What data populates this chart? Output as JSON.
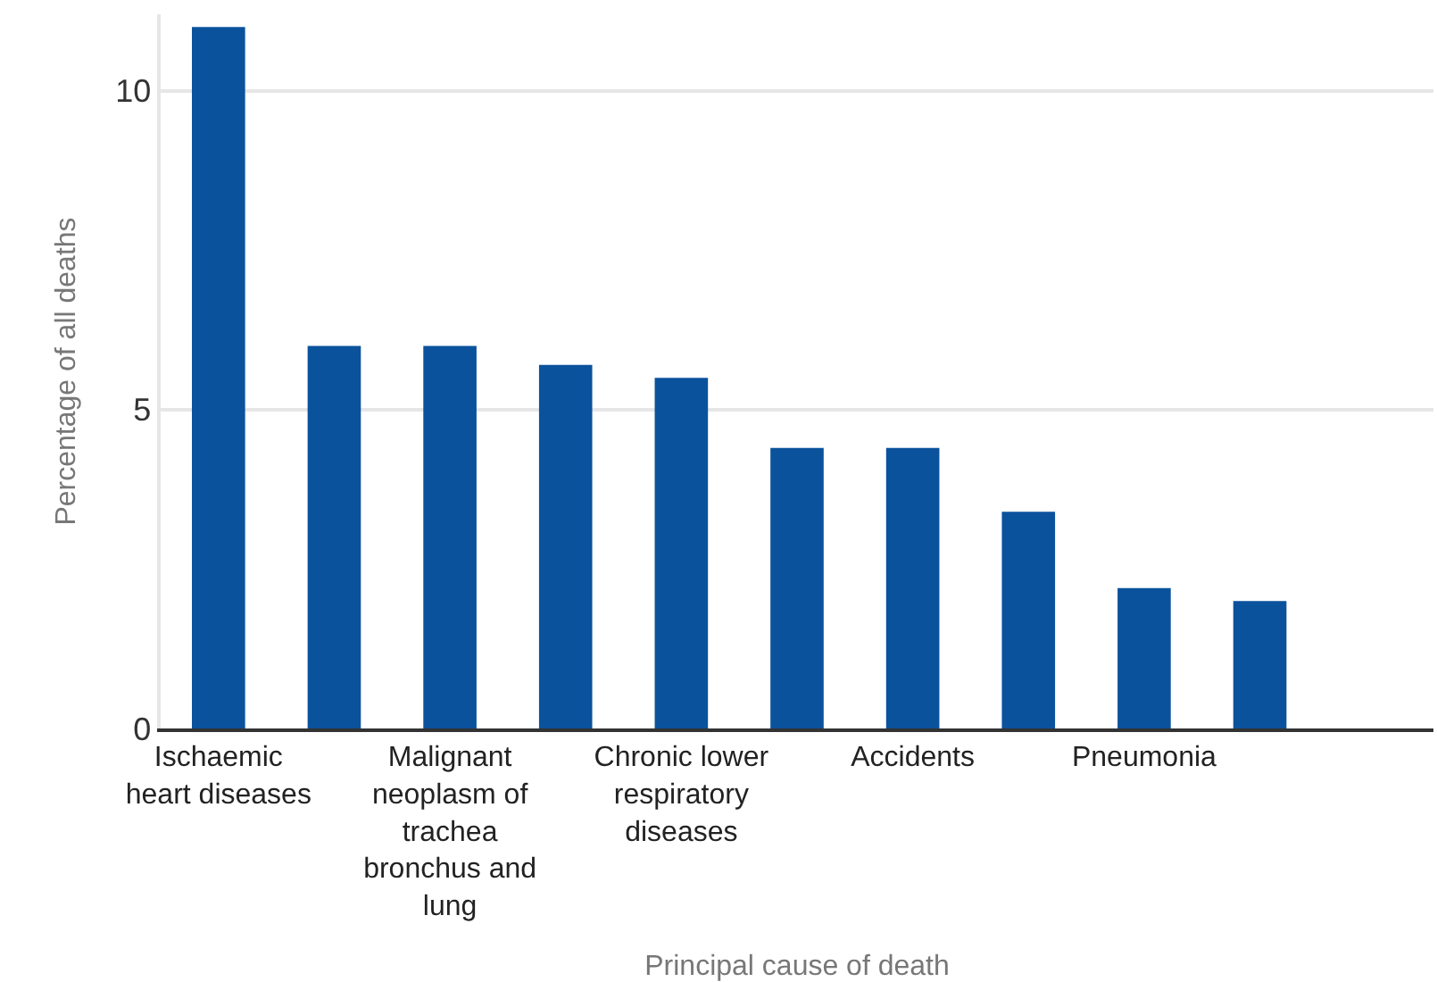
{
  "chart_data": {
    "type": "bar",
    "xlabel": "Principal cause of death",
    "ylabel": "Percentage of all deaths",
    "categories": [
      "Ischaemic heart diseases",
      null,
      "Malignant neoplasm of trachea bronchus and lung",
      null,
      "Chronic lower respiratory diseases",
      null,
      "Accidents",
      null,
      "Pneumonia",
      null,
      null
    ],
    "values": [
      11.0,
      6.0,
      6.0,
      5.7,
      5.5,
      4.4,
      4.4,
      3.4,
      2.2,
      2.0,
      null
    ],
    "color": "#0b529c",
    "ylim": [
      0,
      11.2
    ],
    "yticks": [
      0,
      5,
      10
    ],
    "grid": "y"
  }
}
